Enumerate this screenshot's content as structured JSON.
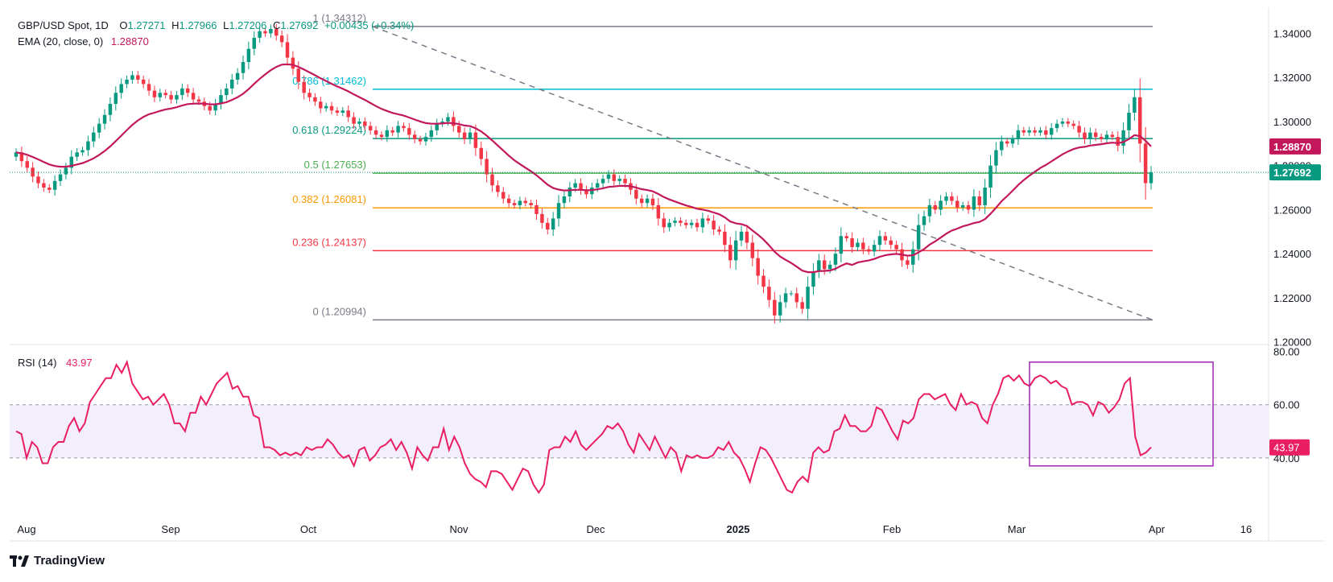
{
  "header": {
    "symbol": "GBP/USD Spot, 1D",
    "o_label": "O",
    "o_value": "1.27271",
    "h_label": "H",
    "h_value": "1.27966",
    "l_label": "L",
    "l_value": "1.27206",
    "c_label": "C",
    "c_value": "1.27692",
    "change": "+0.00435 (+0.34%)",
    "ema_label": "EMA (20, close, 0)",
    "ema_value": "1.28870",
    "rsi_label": "RSI (14)",
    "rsi_value": "43.97"
  },
  "footer": {
    "brand": "TradingView"
  },
  "colors": {
    "up": "#089981",
    "down": "#f23645",
    "ema": "#c2185b",
    "rsi": "#e91e63",
    "rsi_band": "#f3eefc",
    "box": "#9c27b0",
    "grid_text": "#131722"
  },
  "chart_data": {
    "type": "candlestick",
    "symbol": "GBP/USD Spot",
    "timeframe": "1D",
    "price_axis": {
      "ticks": [
        "1.34000",
        "1.32000",
        "1.30000",
        "1.28000",
        "1.26000",
        "1.24000",
        "1.22000",
        "1.20000"
      ],
      "range": [
        1.1995,
        1.3515
      ],
      "last_price_label": "1.27692",
      "ema_price_label": "1.28870"
    },
    "time_axis": {
      "labels": [
        "Aug",
        "Sep",
        "Oct",
        "Nov",
        "Dec",
        "2025",
        "Feb",
        "Mar",
        "Apr",
        "16"
      ]
    },
    "fibonacci": [
      {
        "level": "1",
        "price": 1.34312,
        "label": "1 (1.34312)",
        "color": "#787b86"
      },
      {
        "level": "0.786",
        "price": 1.31462,
        "label": "0.786 (1.31462)",
        "color": "#00bcd4"
      },
      {
        "level": "0.618",
        "price": 1.29224,
        "label": "0.618 (1.29224)",
        "color": "#089981"
      },
      {
        "level": "0.5",
        "price": 1.27653,
        "label": "0.5 (1.27653)",
        "color": "#4caf50"
      },
      {
        "level": "0.382",
        "price": 1.26081,
        "label": "0.382 (1.26081)",
        "color": "#ff9800"
      },
      {
        "level": "0.236",
        "price": 1.24137,
        "label": "0.236 (1.24137)",
        "color": "#f23645"
      },
      {
        "level": "0",
        "price": 1.20994,
        "label": "0 (1.20994)",
        "color": "#787b86"
      }
    ],
    "close_series": [
      1.286,
      1.282,
      1.279,
      1.275,
      1.272,
      1.27,
      1.269,
      1.273,
      1.276,
      1.279,
      1.284,
      1.286,
      1.287,
      1.291,
      1.295,
      1.299,
      1.303,
      1.308,
      1.313,
      1.317,
      1.319,
      1.321,
      1.319,
      1.317,
      1.314,
      1.311,
      1.313,
      1.312,
      1.31,
      1.312,
      1.315,
      1.313,
      1.31,
      1.309,
      1.307,
      1.305,
      1.308,
      1.312,
      1.315,
      1.319,
      1.322,
      1.327,
      1.333,
      1.338,
      1.341,
      1.34,
      1.342,
      1.339,
      1.336,
      1.329,
      1.324,
      1.318,
      1.313,
      1.311,
      1.309,
      1.306,
      1.307,
      1.305,
      1.304,
      1.305,
      1.302,
      1.299,
      1.3,
      1.298,
      1.296,
      1.294,
      1.293,
      1.296,
      1.295,
      1.298,
      1.297,
      1.294,
      1.292,
      1.291,
      1.293,
      1.296,
      1.299,
      1.3,
      1.302,
      1.298,
      1.295,
      1.292,
      1.295,
      1.288,
      1.283,
      1.276,
      1.271,
      1.268,
      1.265,
      1.263,
      1.262,
      1.264,
      1.263,
      1.262,
      1.258,
      1.254,
      1.251,
      1.256,
      1.263,
      1.266,
      1.27,
      1.272,
      1.269,
      1.267,
      1.27,
      1.272,
      1.274,
      1.276,
      1.273,
      1.274,
      1.272,
      1.269,
      1.265,
      1.263,
      1.265,
      1.262,
      1.256,
      1.252,
      1.254,
      1.255,
      1.254,
      1.253,
      1.254,
      1.252,
      1.256,
      1.255,
      1.251,
      1.25,
      1.244,
      1.237,
      1.246,
      1.25,
      1.245,
      1.238,
      1.23,
      1.225,
      1.219,
      1.212,
      1.218,
      1.222,
      1.222,
      1.218,
      1.215,
      1.225,
      1.232,
      1.237,
      1.233,
      1.235,
      1.24,
      1.248,
      1.247,
      1.243,
      1.245,
      1.242,
      1.241,
      1.244,
      1.248,
      1.246,
      1.244,
      1.242,
      1.237,
      1.235,
      1.242,
      1.253,
      1.257,
      1.262,
      1.26,
      1.264,
      1.266,
      1.264,
      1.261,
      1.262,
      1.26,
      1.266,
      1.262,
      1.27,
      1.28,
      1.287,
      1.291,
      1.29,
      1.292,
      1.296,
      1.295,
      1.296,
      1.295,
      1.296,
      1.294,
      1.297,
      1.299,
      1.3,
      1.299,
      1.298,
      1.295,
      1.292,
      1.295,
      1.293,
      1.292,
      1.294,
      1.293,
      1.289,
      1.296,
      1.304,
      1.311,
      1.29,
      1.272,
      1.2769
    ],
    "ema_series": [
      1.286,
      1.2856,
      1.2849,
      1.2839,
      1.2828,
      1.2816,
      1.2805,
      1.2798,
      1.2795,
      1.2795,
      1.2799,
      1.2805,
      1.2811,
      1.2821,
      1.2833,
      1.2848,
      1.2866,
      1.2887,
      1.2911,
      1.2936,
      1.2961,
      1.2985,
      1.3005,
      1.3021,
      1.3033,
      1.304,
      1.3048,
      1.3055,
      1.3059,
      1.3065,
      1.3073,
      1.3079,
      1.3081,
      1.3082,
      1.3081,
      1.3078,
      1.3078,
      1.3082,
      1.3088,
      1.3098,
      1.311,
      1.3126,
      1.3147,
      1.3171,
      1.3194,
      1.3214,
      1.3233,
      1.3248,
      1.3258,
      1.326,
      1.3257,
      1.3248,
      1.3236,
      1.3223,
      1.321,
      1.3196,
      1.3184,
      1.3171,
      1.3159,
      1.3149,
      1.3137,
      1.3123,
      1.3111,
      1.3098,
      1.3084,
      1.307,
      1.3057,
      1.3048,
      1.3039,
      1.3033,
      1.3027,
      1.3018,
      1.3009,
      1.3,
      1.2993,
      1.299,
      1.299,
      1.2991,
      1.2994,
      1.2992,
      1.2988,
      1.2982,
      1.2979,
      1.2969,
      1.2955,
      1.2936,
      1.2914,
      1.2891,
      1.2868,
      1.2845,
      1.2824,
      1.2807,
      1.279,
      1.2774,
      1.2756,
      1.2735,
      1.2713,
      1.2698,
      1.2691,
      1.2687,
      1.2688,
      1.269,
      1.269,
      1.2688,
      1.2689,
      1.2692,
      1.2697,
      1.2703,
      1.2705,
      1.2708,
      1.2708,
      1.2706,
      1.27,
      1.2693,
      1.2689,
      1.2683,
      1.2671,
      1.2657,
      1.2646,
      1.2637,
      1.2628,
      1.2619,
      1.2612,
      1.2604,
      1.26,
      1.2595,
      1.2587,
      1.2579,
      1.2565,
      1.2546,
      1.2538,
      1.2534,
      1.2526,
      1.2505,
      1.2486,
      1.2464,
      1.2438,
      1.2409,
      1.2387,
      1.2372,
      1.2358,
      1.2341,
      1.2323,
      1.2316,
      1.2316,
      1.2321,
      1.2322,
      1.2324,
      1.2332,
      1.2345,
      1.2356,
      1.2349,
      1.236,
      1.2365,
      1.2369,
      1.2376,
      1.2386,
      1.2393,
      1.2397,
      1.2399,
      1.2396,
      1.2391,
      1.2393,
      1.2406,
      1.2421,
      1.2441,
      1.2456,
      1.2473,
      1.2491,
      1.2505,
      1.2514,
      1.2524,
      1.2531,
      1.2539,
      1.2544,
      1.2557,
      1.2581,
      1.2609,
      1.2638,
      1.2662,
      1.2686,
      1.2712,
      1.2734,
      1.2754,
      1.2772,
      1.2789,
      1.2803,
      1.2819,
      1.2835,
      1.2851,
      1.2864,
      1.2875,
      1.2882,
      1.2885,
      1.2891,
      1.2894,
      1.2897,
      1.2901,
      1.2904,
      1.2902,
      1.2907,
      1.292,
      1.2938,
      1.2934,
      1.2913,
      1.2887
    ],
    "rsi_panel": {
      "ticks": [
        "80.00",
        "60.00",
        "40.00"
      ],
      "range": [
        20,
        82
      ],
      "band": [
        40,
        60
      ],
      "last_label": "43.97",
      "rsi_series": [
        50,
        49,
        40,
        46,
        44,
        38,
        38,
        44,
        46,
        46,
        52,
        55,
        50,
        53,
        61,
        64,
        67,
        70,
        70,
        75,
        72,
        76,
        68,
        65,
        62,
        63,
        60,
        62,
        64,
        60,
        53,
        53,
        50,
        57,
        57,
        63,
        60,
        64,
        68,
        70,
        72,
        66,
        67,
        63,
        63,
        56,
        55,
        44,
        44,
        43,
        41,
        42,
        41,
        42,
        41,
        44,
        43,
        44,
        44,
        47,
        45,
        42,
        40,
        41,
        37,
        43,
        44,
        39,
        41,
        44,
        45,
        47,
        43,
        46,
        42,
        36,
        44,
        41,
        39,
        44,
        44,
        51,
        43,
        48,
        44,
        38,
        34,
        32,
        31,
        29,
        35,
        35,
        34,
        31,
        28,
        32,
        36,
        35,
        30,
        27,
        30,
        43,
        44,
        44,
        48,
        46,
        50,
        45,
        43,
        45,
        47,
        49,
        52,
        51,
        53,
        50,
        45,
        42,
        49,
        46,
        43,
        48,
        44,
        40,
        44,
        42,
        35,
        41,
        40,
        41,
        40,
        40,
        41,
        44,
        43,
        46,
        42,
        40,
        36,
        31,
        38,
        44,
        43,
        40,
        36,
        32,
        28,
        27,
        31,
        33,
        31,
        42,
        44,
        42,
        43,
        50,
        51,
        56,
        52,
        52,
        50,
        50,
        52,
        59,
        58,
        54,
        50,
        47,
        54,
        53,
        55,
        62,
        64,
        64,
        62,
        63,
        64,
        60,
        58,
        64,
        60,
        61,
        60,
        55,
        53,
        60,
        64,
        70,
        71,
        69,
        71,
        68,
        67,
        70,
        71,
        70,
        68,
        69,
        67,
        66,
        60,
        61,
        61,
        60,
        56,
        61,
        60,
        57,
        59,
        62,
        68,
        70,
        48,
        41,
        42,
        43.97
      ]
    },
    "trendline": {
      "from": {
        "date_label": "Oct",
        "price": 1.34312
      },
      "to": {
        "date_label": "Apr",
        "price": 1.20994
      },
      "style": "dashed"
    },
    "highlight_box": {
      "panel": "rsi",
      "from_label": "Mar",
      "to_label": "Apr",
      "rsi_range": [
        37,
        76
      ]
    }
  }
}
